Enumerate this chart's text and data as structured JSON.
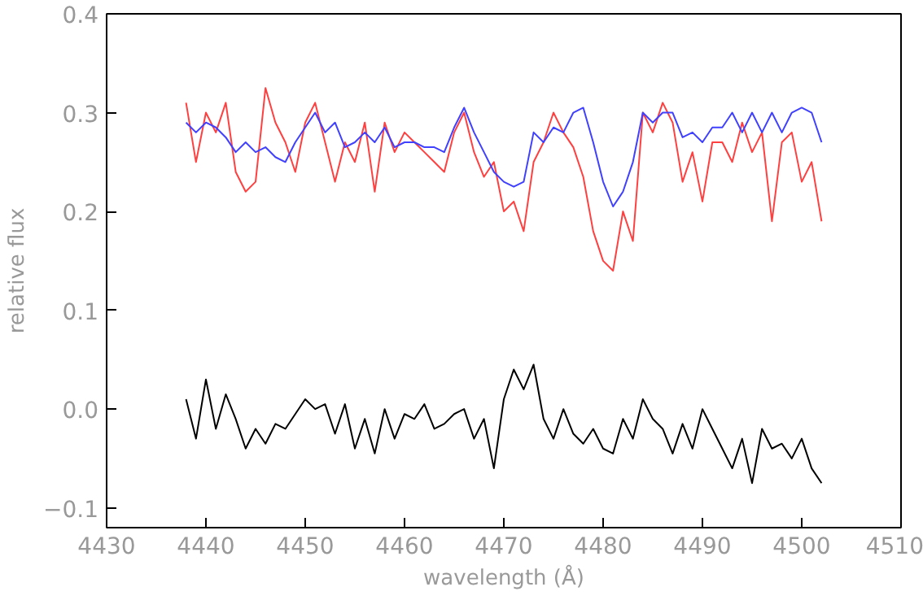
{
  "chart_data": {
    "type": "line",
    "xlabel": "wavelength (Å)",
    "ylabel": "relative flux",
    "x": [
      4438,
      4439,
      4440,
      4441,
      4442,
      4443,
      4444,
      4445,
      4446,
      4447,
      4448,
      4449,
      4450,
      4451,
      4452,
      4453,
      4454,
      4455,
      4456,
      4457,
      4458,
      4459,
      4460,
      4461,
      4462,
      4463,
      4464,
      4465,
      4466,
      4467,
      4468,
      4469,
      4470,
      4471,
      4472,
      4473,
      4474,
      4475,
      4476,
      4477,
      4478,
      4479,
      4480,
      4481,
      4482,
      4483,
      4484,
      4485,
      4486,
      4487,
      4488,
      4489,
      4490,
      4491,
      4492,
      4493,
      4494,
      4495,
      4496,
      4497,
      4498,
      4499,
      4500,
      4501,
      4502
    ],
    "series": [
      {
        "color": "#ff4040",
        "values": [
          0.31,
          0.25,
          0.3,
          0.28,
          0.31,
          0.24,
          0.22,
          0.23,
          0.325,
          0.29,
          0.27,
          0.24,
          0.29,
          0.31,
          0.27,
          0.23,
          0.27,
          0.25,
          0.29,
          0.22,
          0.29,
          0.26,
          0.28,
          0.27,
          0.26,
          0.25,
          0.24,
          0.28,
          0.3,
          0.26,
          0.235,
          0.25,
          0.2,
          0.21,
          0.18,
          0.25,
          0.27,
          0.3,
          0.28,
          0.265,
          0.235,
          0.18,
          0.15,
          0.14,
          0.2,
          0.17,
          0.3,
          0.28,
          0.31,
          0.29,
          0.23,
          0.26,
          0.21,
          0.27,
          0.27,
          0.25,
          0.29,
          0.26,
          0.28,
          0.19,
          0.27,
          0.28,
          0.23,
          0.25,
          0.19
        ]
      },
      {
        "color": "#4040ff",
        "values": [
          0.29,
          0.28,
          0.29,
          0.285,
          0.275,
          0.26,
          0.27,
          0.26,
          0.265,
          0.255,
          0.25,
          0.27,
          0.285,
          0.3,
          0.28,
          0.29,
          0.265,
          0.27,
          0.28,
          0.27,
          0.285,
          0.265,
          0.27,
          0.27,
          0.265,
          0.265,
          0.26,
          0.285,
          0.305,
          0.28,
          0.26,
          0.24,
          0.23,
          0.225,
          0.23,
          0.28,
          0.27,
          0.285,
          0.28,
          0.3,
          0.305,
          0.27,
          0.23,
          0.205,
          0.22,
          0.25,
          0.3,
          0.29,
          0.3,
          0.3,
          0.275,
          0.28,
          0.27,
          0.285,
          0.285,
          0.3,
          0.28,
          0.3,
          0.28,
          0.3,
          0.28,
          0.3,
          0.305,
          0.3,
          0.27
        ]
      },
      {
        "color": "#000000",
        "values": [
          0.01,
          -0.03,
          0.03,
          -0.02,
          0.015,
          -0.01,
          -0.04,
          -0.02,
          -0.035,
          -0.015,
          -0.02,
          -0.005,
          0.01,
          0.0,
          0.005,
          -0.025,
          0.005,
          -0.04,
          -0.01,
          -0.045,
          0.0,
          -0.03,
          -0.005,
          -0.01,
          0.005,
          -0.02,
          -0.015,
          -0.005,
          0.0,
          -0.03,
          -0.01,
          -0.06,
          0.01,
          0.04,
          0.02,
          0.045,
          -0.01,
          -0.03,
          0.0,
          -0.025,
          -0.035,
          -0.02,
          -0.04,
          -0.045,
          -0.01,
          -0.03,
          0.01,
          -0.01,
          -0.02,
          -0.045,
          -0.015,
          -0.04,
          0.0,
          -0.02,
          -0.04,
          -0.06,
          -0.03,
          -0.075,
          -0.02,
          -0.04,
          -0.035,
          -0.05,
          -0.03,
          -0.06,
          -0.075
        ]
      }
    ],
    "xlim": [
      4430,
      4510
    ],
    "xticks": [
      4430,
      4440,
      4450,
      4460,
      4470,
      4480,
      4490,
      4500,
      4510
    ],
    "ylim": [
      -0.12,
      0.4
    ],
    "yticks": [
      {
        "value": -0.1,
        "label": "−0.1"
      },
      {
        "value": 0,
        "label": "0.0"
      },
      {
        "value": 0.1,
        "label": "0.1"
      },
      {
        "value": 0.2,
        "label": "0.2"
      },
      {
        "value": 0.3,
        "label": "0.3"
      },
      {
        "value": 0.4,
        "label": "0.4"
      }
    ],
    "grid": false
  }
}
